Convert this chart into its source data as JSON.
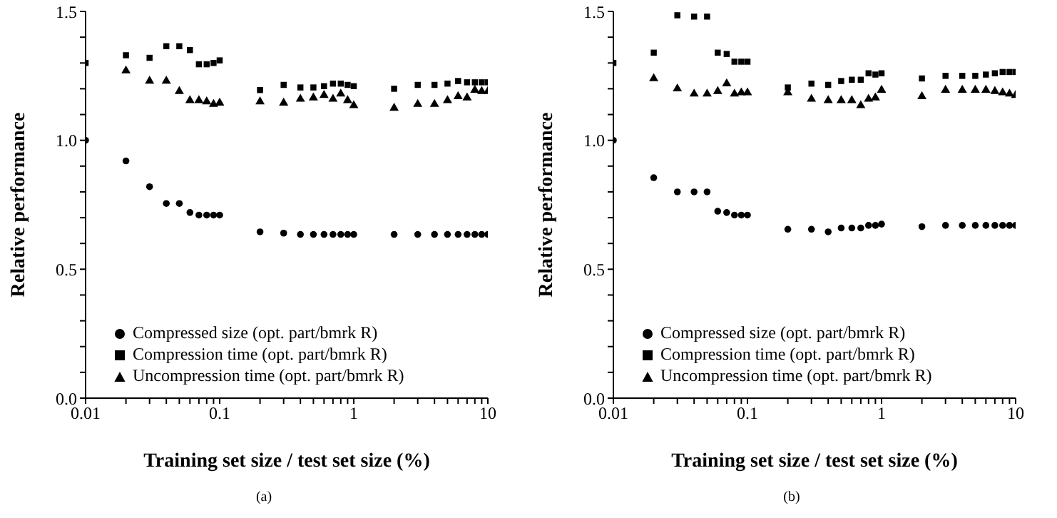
{
  "chart_data": [
    {
      "type": "scatter",
      "xlabel": "Training set size / test set size (%)",
      "ylabel": "Relative performance",
      "annotations": [
        "(a)"
      ],
      "log": "x",
      "legend": "bottom left",
      "grid": false,
      "x": [
        0.01,
        0.02,
        0.03,
        0.04,
        0.05,
        0.06,
        0.07,
        0.08,
        0.09,
        0.1,
        0.2,
        0.3,
        0.4,
        0.5,
        0.6,
        0.7,
        0.8,
        0.9,
        1,
        2,
        3,
        4,
        5,
        6,
        7,
        8,
        9,
        10
      ],
      "xlim": [
        0.01,
        10
      ],
      "xticks": [
        0.01,
        {
          "value": 0.02,
          "label": null
        },
        {
          "value": 0.03,
          "label": null
        },
        {
          "value": 0.04,
          "label": null
        },
        {
          "value": 0.05,
          "label": null
        },
        {
          "value": 0.06,
          "label": null
        },
        {
          "value": 0.07,
          "label": null
        },
        {
          "value": 0.08,
          "label": null
        },
        {
          "value": 0.09,
          "label": null
        },
        0.1,
        {
          "value": 0.2,
          "label": null
        },
        {
          "value": 0.3,
          "label": null
        },
        {
          "value": 0.4,
          "label": null
        },
        {
          "value": 0.5,
          "label": null
        },
        {
          "value": 0.6,
          "label": null
        },
        {
          "value": 0.7,
          "label": null
        },
        {
          "value": 0.8,
          "label": null
        },
        {
          "value": 0.9,
          "label": null
        },
        1,
        {
          "value": 2,
          "label": null
        },
        {
          "value": 3,
          "label": null
        },
        {
          "value": 4,
          "label": null
        },
        {
          "value": 5,
          "label": null
        },
        {
          "value": 6,
          "label": null
        },
        {
          "value": 7,
          "label": null
        },
        {
          "value": 8,
          "label": null
        },
        {
          "value": 9,
          "label": null
        },
        10
      ],
      "ylim": [
        0,
        1.5
      ],
      "yticks": [
        {
          "value": 0,
          "label": "0.0"
        },
        {
          "value": 0.1,
          "label": null
        },
        {
          "value": 0.2,
          "label": null
        },
        {
          "value": 0.3,
          "label": null
        },
        {
          "value": 0.4,
          "label": null
        },
        {
          "value": 0.5,
          "label": "0.5"
        },
        {
          "value": 0.6,
          "label": null
        },
        {
          "value": 0.7,
          "label": null
        },
        {
          "value": 0.8,
          "label": null
        },
        {
          "value": 0.9,
          "label": null
        },
        {
          "value": 1,
          "label": "1.0"
        },
        {
          "value": 1.1,
          "label": null
        },
        {
          "value": 1.2,
          "label": null
        },
        {
          "value": 1.3,
          "label": null
        },
        {
          "value": 1.4,
          "label": null
        },
        {
          "value": 1.5,
          "label": "1.5"
        }
      ],
      "series": [
        {
          "name": "Compressed size (opt. part/bmrk R)",
          "color": "#000000",
          "marker": "circle",
          "values": [
            1.0,
            0.92,
            0.82,
            0.755,
            0.755,
            0.72,
            0.71,
            0.71,
            0.71,
            0.71,
            0.645,
            0.64,
            0.635,
            0.635,
            0.635,
            0.635,
            0.635,
            0.635,
            0.635,
            0.635,
            0.635,
            0.635,
            0.635,
            0.635,
            0.635,
            0.635,
            0.635,
            0.635
          ]
        },
        {
          "name": "Compression time (opt. part/bmrk R)",
          "color": "#000000",
          "marker": "square",
          "values": [
            1.3,
            1.33,
            1.32,
            1.365,
            1.365,
            1.35,
            1.295,
            1.295,
            1.3,
            1.31,
            1.195,
            1.215,
            1.205,
            1.205,
            1.21,
            1.22,
            1.22,
            1.215,
            1.21,
            1.2,
            1.215,
            1.215,
            1.22,
            1.23,
            1.225,
            1.225,
            1.225,
            1.225
          ]
        },
        {
          "name": "Uncompression time (opt. part/bmrk R)",
          "color": "#000000",
          "marker": "triangle",
          "values": [
            null,
            1.27,
            1.23,
            1.23,
            1.19,
            1.155,
            1.155,
            1.15,
            1.14,
            1.145,
            1.15,
            1.145,
            1.16,
            1.165,
            1.175,
            1.16,
            1.18,
            1.155,
            1.135,
            1.125,
            1.14,
            1.14,
            1.155,
            1.17,
            1.165,
            1.195,
            1.19,
            1.19
          ]
        }
      ]
    },
    {
      "type": "scatter",
      "xlabel": "Training set size / test set size (%)",
      "ylabel": "Relative performance",
      "annotations": [
        "(b)"
      ],
      "log": "x",
      "legend": "bottom left",
      "grid": false,
      "x": [
        0.01,
        0.02,
        0.03,
        0.04,
        0.05,
        0.06,
        0.07,
        0.08,
        0.09,
        0.1,
        0.2,
        0.3,
        0.4,
        0.5,
        0.6,
        0.7,
        0.8,
        0.9,
        1,
        2,
        3,
        4,
        5,
        6,
        7,
        8,
        9,
        10
      ],
      "xlim": [
        0.01,
        10
      ],
      "xticks": [
        0.01,
        {
          "value": 0.02,
          "label": null
        },
        {
          "value": 0.03,
          "label": null
        },
        {
          "value": 0.04,
          "label": null
        },
        {
          "value": 0.05,
          "label": null
        },
        {
          "value": 0.06,
          "label": null
        },
        {
          "value": 0.07,
          "label": null
        },
        {
          "value": 0.08,
          "label": null
        },
        {
          "value": 0.09,
          "label": null
        },
        0.1,
        {
          "value": 0.2,
          "label": null
        },
        {
          "value": 0.3,
          "label": null
        },
        {
          "value": 0.4,
          "label": null
        },
        {
          "value": 0.5,
          "label": null
        },
        {
          "value": 0.6,
          "label": null
        },
        {
          "value": 0.7,
          "label": null
        },
        {
          "value": 0.8,
          "label": null
        },
        {
          "value": 0.9,
          "label": null
        },
        1,
        {
          "value": 2,
          "label": null
        },
        {
          "value": 3,
          "label": null
        },
        {
          "value": 4,
          "label": null
        },
        {
          "value": 5,
          "label": null
        },
        {
          "value": 6,
          "label": null
        },
        {
          "value": 7,
          "label": null
        },
        {
          "value": 8,
          "label": null
        },
        {
          "value": 9,
          "label": null
        },
        10
      ],
      "ylim": [
        0,
        1.5
      ],
      "yticks": [
        {
          "value": 0,
          "label": "0.0"
        },
        {
          "value": 0.1,
          "label": null
        },
        {
          "value": 0.2,
          "label": null
        },
        {
          "value": 0.3,
          "label": null
        },
        {
          "value": 0.4,
          "label": null
        },
        {
          "value": 0.5,
          "label": "0.5"
        },
        {
          "value": 0.6,
          "label": null
        },
        {
          "value": 0.7,
          "label": null
        },
        {
          "value": 0.8,
          "label": null
        },
        {
          "value": 0.9,
          "label": null
        },
        {
          "value": 1,
          "label": "1.0"
        },
        {
          "value": 1.1,
          "label": null
        },
        {
          "value": 1.2,
          "label": null
        },
        {
          "value": 1.3,
          "label": null
        },
        {
          "value": 1.4,
          "label": null
        },
        {
          "value": 1.5,
          "label": "1.5"
        }
      ],
      "series": [
        {
          "name": "Compressed size (opt. part/bmrk R)",
          "color": "#000000",
          "marker": "circle",
          "values": [
            1.0,
            0.855,
            0.8,
            0.8,
            0.8,
            0.725,
            0.72,
            0.71,
            0.71,
            0.71,
            0.655,
            0.655,
            0.645,
            0.66,
            0.66,
            0.66,
            0.67,
            0.67,
            0.675,
            0.665,
            0.67,
            0.67,
            0.67,
            0.67,
            0.67,
            0.67,
            0.67,
            0.67
          ]
        },
        {
          "name": "Compression time (opt. part/bmrk R)",
          "color": "#000000",
          "marker": "square",
          "values": [
            1.3,
            1.34,
            1.485,
            1.48,
            1.48,
            1.34,
            1.335,
            1.305,
            1.305,
            1.305,
            1.205,
            1.22,
            1.215,
            1.23,
            1.235,
            1.235,
            1.26,
            1.255,
            1.26,
            1.24,
            1.25,
            1.25,
            1.25,
            1.255,
            1.26,
            1.265,
            1.265,
            1.265
          ]
        },
        {
          "name": "Uncompression time (opt. part/bmrk R)",
          "color": "#000000",
          "marker": "triangle",
          "values": [
            null,
            1.24,
            1.2,
            1.18,
            1.18,
            1.19,
            1.22,
            1.18,
            1.185,
            1.185,
            1.185,
            1.16,
            1.155,
            1.155,
            1.155,
            1.135,
            1.16,
            1.165,
            1.195,
            1.17,
            1.195,
            1.195,
            1.195,
            1.195,
            1.19,
            1.185,
            1.18,
            1.175
          ]
        }
      ]
    }
  ]
}
